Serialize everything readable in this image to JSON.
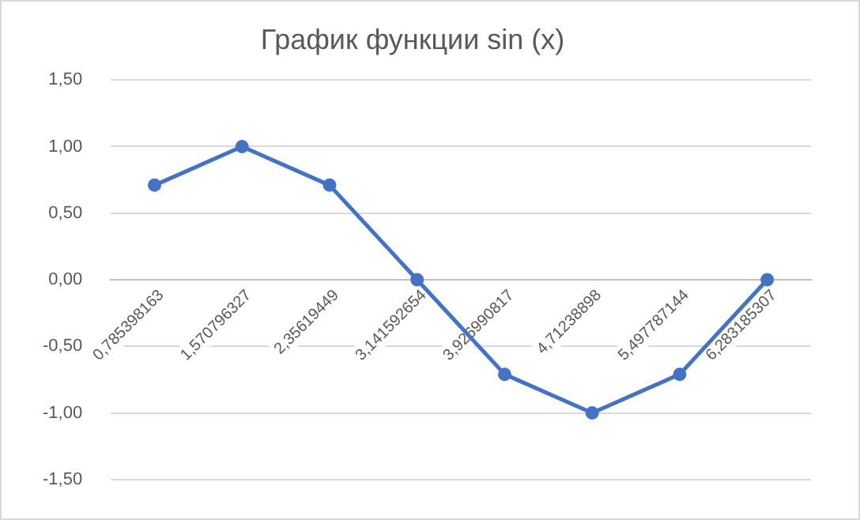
{
  "chart_data": {
    "type": "line",
    "title": "График функции sin (x)",
    "categories": [
      "0,785398163",
      "1,570796327",
      "2,35619449",
      "3,141592654",
      "3,926990817",
      "4,71238898",
      "5,497787144",
      "6,283185307"
    ],
    "values": [
      0.71,
      1.0,
      0.71,
      0.0,
      -0.71,
      -1.0,
      -0.71,
      0.0
    ],
    "color": "#4472c4",
    "marker": "circle",
    "grid": "y",
    "ylim": [
      -1.5,
      1.5
    ],
    "yticks": [
      {
        "value": -1.5,
        "label": "-1,50"
      },
      {
        "value": -1,
        "label": "-1,00"
      },
      {
        "value": -0.5,
        "label": "-0,50"
      },
      {
        "value": 0,
        "label": "0,00"
      },
      {
        "value": 0.5,
        "label": "0,50"
      },
      {
        "value": 1,
        "label": "1,00"
      },
      {
        "value": 1.5,
        "label": "1,50"
      }
    ]
  }
}
